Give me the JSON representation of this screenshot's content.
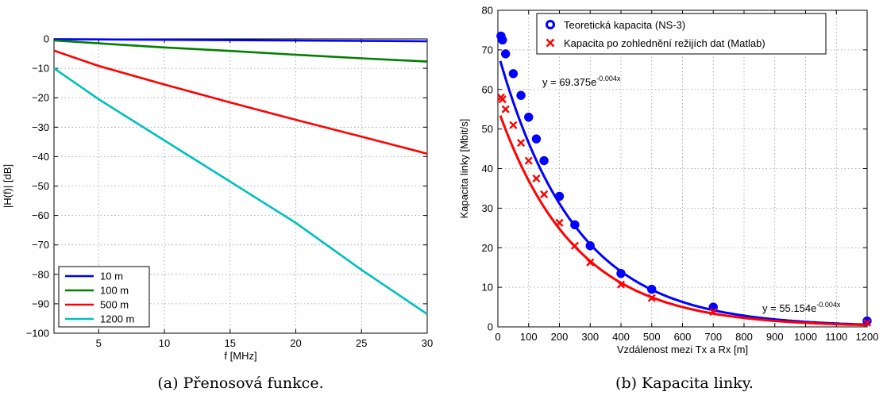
{
  "chart_data": [
    {
      "type": "line",
      "xlabel": "f [MHz]",
      "ylabel": "|H(f)| [dB]",
      "xlim": [
        1.6,
        30
      ],
      "ylim": [
        -100,
        0
      ],
      "xticks": [
        5,
        10,
        15,
        20,
        25,
        30
      ],
      "yticks": [
        0,
        -10,
        -20,
        -30,
        -40,
        -50,
        -60,
        -70,
        -80,
        -90,
        -100
      ],
      "grid": true,
      "legend_position": "bottom-left",
      "caption": "(a) Přenosová funkce.",
      "series": [
        {
          "name": "10 m",
          "color": "#0000ff",
          "x": [
            1.6,
            30
          ],
          "y": [
            -0.1,
            -0.8
          ]
        },
        {
          "name": "100 m",
          "color": "#007f00",
          "x": [
            1.6,
            5,
            10,
            15,
            20,
            25,
            30
          ],
          "y": [
            -0.5,
            -1.5,
            -2.9,
            -4.1,
            -5.4,
            -6.6,
            -7.7
          ]
        },
        {
          "name": "500 m",
          "color": "#ff0000",
          "x": [
            1.6,
            5,
            10,
            15,
            20,
            25,
            30
          ],
          "y": [
            -4.0,
            -9.2,
            -15.5,
            -21.6,
            -27.5,
            -33.2,
            -39.0
          ]
        },
        {
          "name": "1200 m",
          "color": "#00bfbf",
          "x": [
            1.6,
            5,
            10,
            15,
            20,
            25,
            30
          ],
          "y": [
            -10.0,
            -20.5,
            -34.5,
            -48.5,
            -62.5,
            -78.5,
            -93.5
          ]
        }
      ]
    },
    {
      "type": "scatter",
      "xlabel": "Vzdálenost mezi Tx a Rx [m]",
      "ylabel": "Kapacita linky [Mbit/s]",
      "xlim": [
        0,
        1200
      ],
      "ylim": [
        0,
        80
      ],
      "xticks": [
        0,
        100,
        200,
        300,
        400,
        500,
        600,
        700,
        800,
        900,
        1000,
        1100,
        1200
      ],
      "yticks": [
        0,
        10,
        20,
        30,
        40,
        50,
        60,
        70,
        80
      ],
      "grid": true,
      "legend_position": "top-right",
      "caption": "(b) Kapacita linky.",
      "series": [
        {
          "name": "Teoretická kapacita (NS-3)",
          "color": "#0000ff",
          "marker": "circle",
          "x": [
            10,
            15,
            25,
            50,
            75,
            100,
            125,
            150,
            200,
            250,
            300,
            400,
            500,
            700,
            1200
          ],
          "y": [
            73.5,
            72.5,
            69.0,
            64.0,
            58.5,
            53.0,
            47.5,
            42.0,
            33.0,
            25.8,
            20.5,
            13.5,
            9.5,
            5.0,
            1.5
          ]
        },
        {
          "name": "Kapacita po zohlednění režijích dat (Matlab)",
          "color": "#ff0000",
          "marker": "x",
          "x": [
            10,
            15,
            25,
            50,
            75,
            100,
            125,
            150,
            200,
            250,
            300,
            400,
            500,
            700,
            1200
          ],
          "y": [
            58.0,
            57.5,
            55.0,
            51.0,
            46.5,
            42.0,
            37.5,
            33.5,
            26.3,
            20.5,
            16.3,
            10.7,
            7.3,
            3.8,
            1.0
          ]
        }
      ],
      "fits": [
        {
          "color": "#0000ff",
          "a": 69.375,
          "b": -0.004,
          "label_prefix": "y = 69.375e",
          "label_exp": "-0.004x"
        },
        {
          "color": "#ff0000",
          "a": 55.154,
          "b": -0.004,
          "label_prefix": "y = 55.154e",
          "label_exp": "-0.004x"
        }
      ]
    }
  ]
}
